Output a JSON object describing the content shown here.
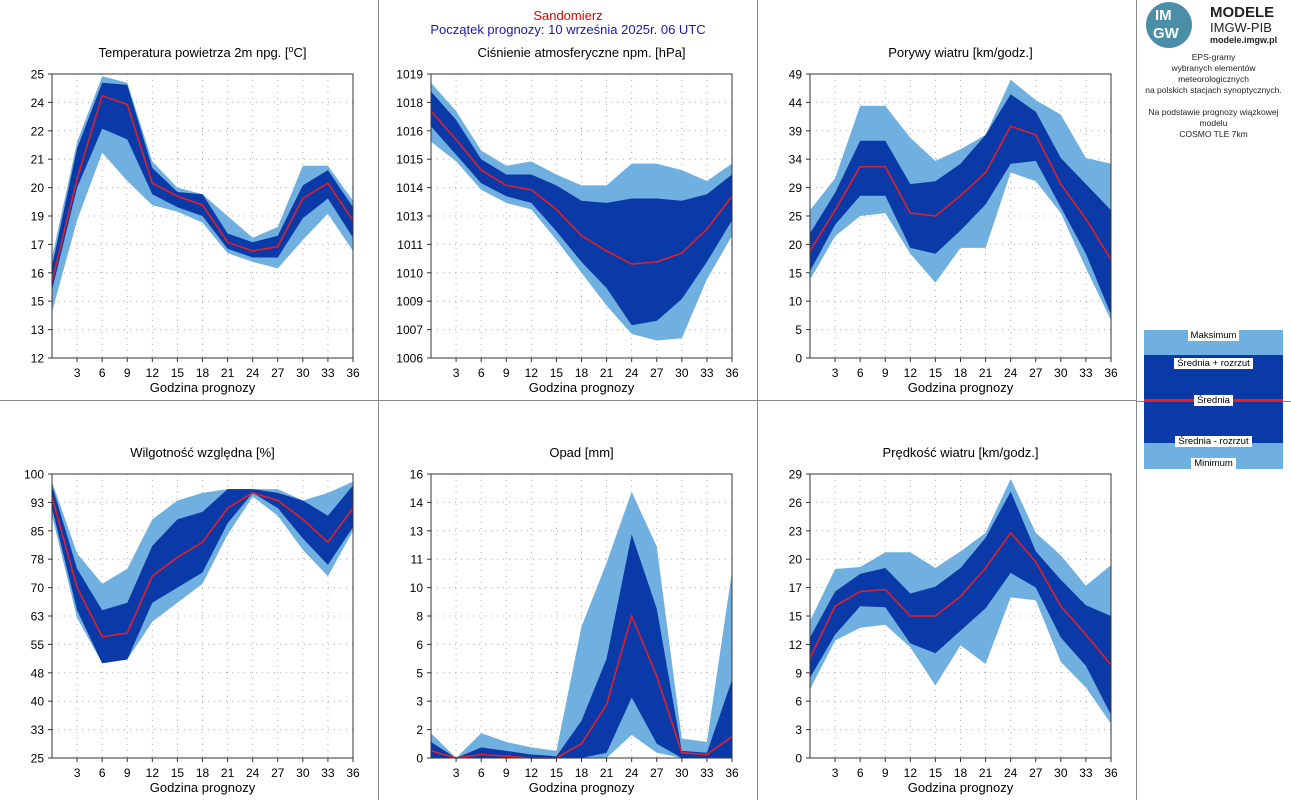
{
  "header": {
    "station": "Sandomierz",
    "forecast_start": "Początek prognozy: 10 września 2025r. 06 UTC"
  },
  "logo": {
    "badge_top": "IM",
    "badge_bottom": "GW",
    "line1": "MODELE",
    "line2": "IMGW-PIB",
    "line3": "modele.imgw.pl"
  },
  "description": {
    "line1": "EPS-gramy",
    "line2": "wybranych elementów meteorologicznych",
    "line3": "na polskich stacjach  synoptycznych.",
    "line4": "Na podstawie prognozy wiązkowej modelu",
    "line5": "COSMO TLE 7km"
  },
  "legend": {
    "max": "Maksimum",
    "mean_plus": "Średnia + rozrzut",
    "mean": "Średnia",
    "mean_minus": "Średnia - rozrzut",
    "min": "Minimum"
  },
  "colors": {
    "outer_band": "#6fb0e0",
    "inner_band": "#0a3aa8",
    "mean_line": "#e0202a",
    "grid": "#aaaaaa",
    "station_text": "#e00000",
    "start_text": "#1a1aa8"
  },
  "chart_data": [
    {
      "type": "area",
      "title": "Temperatura powietrza 2m npg. [°C]",
      "xlabel": "Godzina prognozy",
      "x": [
        0,
        3,
        6,
        9,
        12,
        15,
        18,
        21,
        24,
        27,
        30,
        33,
        36
      ],
      "xticks": [
        "3",
        "6",
        "9",
        "12",
        "15",
        "18",
        "21",
        "24",
        "27",
        "30",
        "33",
        "36"
      ],
      "ylim": [
        12,
        25
      ],
      "yticks": [
        "12",
        "13",
        "15",
        "16",
        "17",
        "19",
        "20",
        "21",
        "22",
        "24",
        "25"
      ],
      "series": [
        {
          "name": "Maksimum",
          "values": [
            16.6,
            21.9,
            24.9,
            24.6,
            21.0,
            19.8,
            19.5,
            18.5,
            17.5,
            18.0,
            20.8,
            20.8,
            19.2
          ]
        },
        {
          "name": "Średnia + rozrzut",
          "values": [
            16.2,
            21.6,
            24.6,
            24.5,
            20.7,
            19.6,
            19.5,
            17.7,
            17.3,
            17.6,
            19.9,
            20.6,
            18.9
          ]
        },
        {
          "name": "Średnia",
          "values": [
            15.5,
            20.2,
            24.0,
            23.6,
            20.0,
            19.4,
            19.0,
            17.3,
            16.9,
            17.1,
            19.3,
            20.0,
            18.3
          ]
        },
        {
          "name": "Średnia - rozrzut",
          "values": [
            15.1,
            19.8,
            22.5,
            22.0,
            19.5,
            18.9,
            18.5,
            17.0,
            16.6,
            16.6,
            18.4,
            19.3,
            17.5
          ]
        },
        {
          "name": "Minimum",
          "values": [
            14.1,
            18.3,
            21.4,
            20.1,
            19.0,
            18.7,
            18.2,
            16.8,
            16.4,
            16.1,
            17.4,
            18.6,
            16.9
          ]
        }
      ]
    },
    {
      "type": "area",
      "title": "Ciśnienie atmosferyczne npm. [hPa]",
      "xlabel": "Godzina prognozy",
      "x": [
        0,
        3,
        6,
        9,
        12,
        15,
        18,
        21,
        24,
        27,
        30,
        33,
        36
      ],
      "xticks": [
        "3",
        "6",
        "9",
        "12",
        "15",
        "18",
        "21",
        "24",
        "27",
        "30",
        "33",
        "36"
      ],
      "ylim": [
        1006,
        1019
      ],
      "yticks": [
        "1006",
        "1007",
        "1009",
        "1010",
        "1011",
        "1013",
        "1014",
        "1015",
        "1016",
        "1018",
        "1019"
      ],
      "series": [
        {
          "name": "Maksimum",
          "values": [
            1018.6,
            1017.3,
            1015.5,
            1014.8,
            1015.0,
            1014.4,
            1013.9,
            1013.9,
            1014.9,
            1014.9,
            1014.6,
            1014.1,
            1014.9
          ]
        },
        {
          "name": "Średnia + rozrzut",
          "values": [
            1018.2,
            1016.9,
            1015.1,
            1014.4,
            1014.4,
            1013.9,
            1013.2,
            1013.1,
            1013.3,
            1013.3,
            1013.2,
            1013.5,
            1014.4
          ]
        },
        {
          "name": "Średnia",
          "values": [
            1017.3,
            1016.0,
            1014.6,
            1013.9,
            1013.7,
            1012.8,
            1011.6,
            1010.9,
            1010.3,
            1010.4,
            1010.8,
            1011.9,
            1013.4
          ]
        },
        {
          "name": "Średnia - rozrzut",
          "values": [
            1016.6,
            1015.3,
            1014.0,
            1013.4,
            1013.1,
            1011.8,
            1010.4,
            1009.2,
            1007.5,
            1007.7,
            1008.7,
            1010.4,
            1012.3
          ]
        },
        {
          "name": "Minimum",
          "values": [
            1015.9,
            1015.0,
            1013.7,
            1013.1,
            1012.8,
            1011.4,
            1009.9,
            1008.4,
            1007.1,
            1006.8,
            1006.9,
            1009.6,
            1011.6
          ]
        }
      ]
    },
    {
      "type": "area",
      "title": "Porywy wiatru [km/godz.]",
      "xlabel": "Godzina prognozy",
      "x": [
        0,
        3,
        6,
        9,
        12,
        15,
        18,
        21,
        24,
        27,
        30,
        33,
        36
      ],
      "xticks": [
        "3",
        "6",
        "9",
        "12",
        "15",
        "18",
        "21",
        "24",
        "27",
        "30",
        "33",
        "36"
      ],
      "ylim": [
        0,
        49
      ],
      "yticks": [
        "0",
        "5",
        "10",
        "15",
        "20",
        "25",
        "29",
        "34",
        "39",
        "44",
        "49"
      ],
      "series": [
        {
          "name": "Maksimum",
          "values": [
            25.5,
            31.0,
            43.5,
            43.5,
            38.0,
            34.0,
            36.0,
            38.5,
            48.0,
            44.5,
            42.0,
            34.5,
            33.5
          ]
        },
        {
          "name": "Średnia + rozrzut",
          "values": [
            21.5,
            28.5,
            37.5,
            37.5,
            30.0,
            30.5,
            33.5,
            38.5,
            45.5,
            42.5,
            34.5,
            30.0,
            25.5
          ]
        },
        {
          "name": "Średnia",
          "values": [
            18.5,
            25.5,
            33.0,
            33.0,
            25.0,
            24.5,
            28.0,
            32.0,
            40.0,
            38.5,
            30.0,
            24.0,
            17.0
          ]
        },
        {
          "name": "Średnia - rozrzut",
          "values": [
            15.0,
            23.0,
            28.0,
            28.0,
            19.0,
            18.0,
            22.0,
            26.5,
            33.5,
            34.0,
            26.0,
            18.0,
            7.5
          ]
        },
        {
          "name": "Minimum",
          "values": [
            13.5,
            21.0,
            24.5,
            25.0,
            18.0,
            13.0,
            19.0,
            19.0,
            32.0,
            30.5,
            25.0,
            15.5,
            6.5
          ]
        }
      ]
    },
    {
      "type": "area",
      "title": "Wilgotność względna [%]",
      "xlabel": "Godzina prognozy",
      "x": [
        0,
        3,
        6,
        9,
        12,
        15,
        18,
        21,
        24,
        27,
        30,
        33,
        36
      ],
      "xticks": [
        "3",
        "6",
        "9",
        "12",
        "15",
        "18",
        "21",
        "24",
        "27",
        "30",
        "33",
        "36"
      ],
      "ylim": [
        25,
        100
      ],
      "yticks": [
        "25",
        "33",
        "40",
        "48",
        "55",
        "63",
        "70",
        "78",
        "85",
        "93",
        "100"
      ],
      "series": [
        {
          "name": "Maksimum",
          "values": [
            98,
            79,
            71,
            75,
            88,
            93,
            95,
            96,
            96,
            96,
            93,
            95,
            98
          ]
        },
        {
          "name": "Średnia + rozrzut",
          "values": [
            97,
            75,
            64,
            66,
            81,
            88,
            90,
            96,
            96,
            95,
            93,
            89,
            97
          ]
        },
        {
          "name": "Średnia",
          "values": [
            94,
            70,
            57,
            58,
            73,
            78,
            82,
            91,
            95,
            93,
            88,
            82,
            91
          ]
        },
        {
          "name": "Średnia - rozrzut",
          "values": [
            91,
            64,
            50,
            51,
            66,
            70,
            74,
            87,
            95,
            91,
            83,
            76,
            86
          ]
        },
        {
          "name": "Minimum",
          "values": [
            89,
            62,
            50,
            51,
            61,
            66,
            71,
            84,
            94,
            89,
            80,
            73,
            85
          ]
        }
      ]
    },
    {
      "type": "area",
      "title": "Opad [mm]",
      "xlabel": "Godzina prognozy",
      "x": [
        0,
        3,
        6,
        9,
        12,
        15,
        18,
        21,
        24,
        27,
        30,
        33,
        36
      ],
      "xticks": [
        "3",
        "6",
        "9",
        "12",
        "15",
        "18",
        "21",
        "24",
        "27",
        "30",
        "33",
        "36"
      ],
      "ylim": [
        0,
        16
      ],
      "yticks": [
        "0",
        "2",
        "3",
        "5",
        "6",
        "8",
        "10",
        "11",
        "13",
        "14",
        "16"
      ],
      "series": [
        {
          "name": "Maksimum",
          "values": [
            1.4,
            0.0,
            1.4,
            0.9,
            0.6,
            0.4,
            7.4,
            11.0,
            15.0,
            11.9,
            1.1,
            0.9,
            10.5
          ]
        },
        {
          "name": "Średnia + rozrzut",
          "values": [
            0.9,
            0.0,
            0.6,
            0.4,
            0.2,
            0.1,
            2.1,
            5.6,
            12.6,
            8.4,
            0.4,
            0.3,
            4.4
          ]
        },
        {
          "name": "Średnia",
          "values": [
            0.4,
            0.0,
            0.2,
            0.1,
            0.0,
            0.0,
            0.8,
            3.0,
            8.0,
            4.6,
            0.3,
            0.2,
            1.2
          ]
        },
        {
          "name": "Średnia - rozrzut",
          "values": [
            0.0,
            0.0,
            0.0,
            0.0,
            0.0,
            0.0,
            0.0,
            0.3,
            3.4,
            0.8,
            0.0,
            0.0,
            0.0
          ]
        },
        {
          "name": "Minimum",
          "values": [
            0.0,
            0.0,
            0.0,
            0.0,
            0.0,
            0.0,
            0.0,
            0.0,
            1.3,
            0.3,
            0.0,
            0.0,
            0.0
          ]
        }
      ]
    },
    {
      "type": "area",
      "title": "Prędkość wiatru [km/godz.]",
      "xlabel": "Godzina prognozy",
      "x": [
        0,
        3,
        6,
        9,
        12,
        15,
        18,
        21,
        24,
        27,
        30,
        33,
        36
      ],
      "xticks": [
        "3",
        "6",
        "9",
        "12",
        "15",
        "18",
        "21",
        "24",
        "27",
        "30",
        "33",
        "36"
      ],
      "ylim": [
        0,
        29
      ],
      "yticks": [
        "0",
        "3",
        "6",
        "9",
        "12",
        "15",
        "17",
        "20",
        "23",
        "26",
        "29"
      ],
      "series": [
        {
          "name": "Maksimum",
          "values": [
            14.0,
            19.3,
            19.5,
            21.0,
            21.0,
            19.4,
            21.1,
            23.0,
            28.5,
            23.0,
            20.7,
            17.6,
            19.7
          ]
        },
        {
          "name": "Średnia + rozrzut",
          "values": [
            12.3,
            17.0,
            18.8,
            19.4,
            16.8,
            17.5,
            19.4,
            22.5,
            27.2,
            21.1,
            18.2,
            15.6,
            14.5
          ]
        },
        {
          "name": "Średnia",
          "values": [
            10.2,
            15.5,
            17.0,
            17.2,
            14.5,
            14.5,
            16.5,
            19.4,
            23.0,
            20.0,
            15.5,
            12.6,
            9.5
          ]
        },
        {
          "name": "Średnia - rozrzut",
          "values": [
            8.2,
            12.6,
            15.5,
            15.4,
            11.7,
            10.7,
            13.0,
            15.3,
            18.9,
            17.4,
            12.3,
            9.4,
            4.4
          ]
        },
        {
          "name": "Minimum",
          "values": [
            7.0,
            12.0,
            13.3,
            13.6,
            11.3,
            7.4,
            11.5,
            9.6,
            16.4,
            16.1,
            9.8,
            7.2,
            3.5
          ]
        }
      ]
    }
  ]
}
